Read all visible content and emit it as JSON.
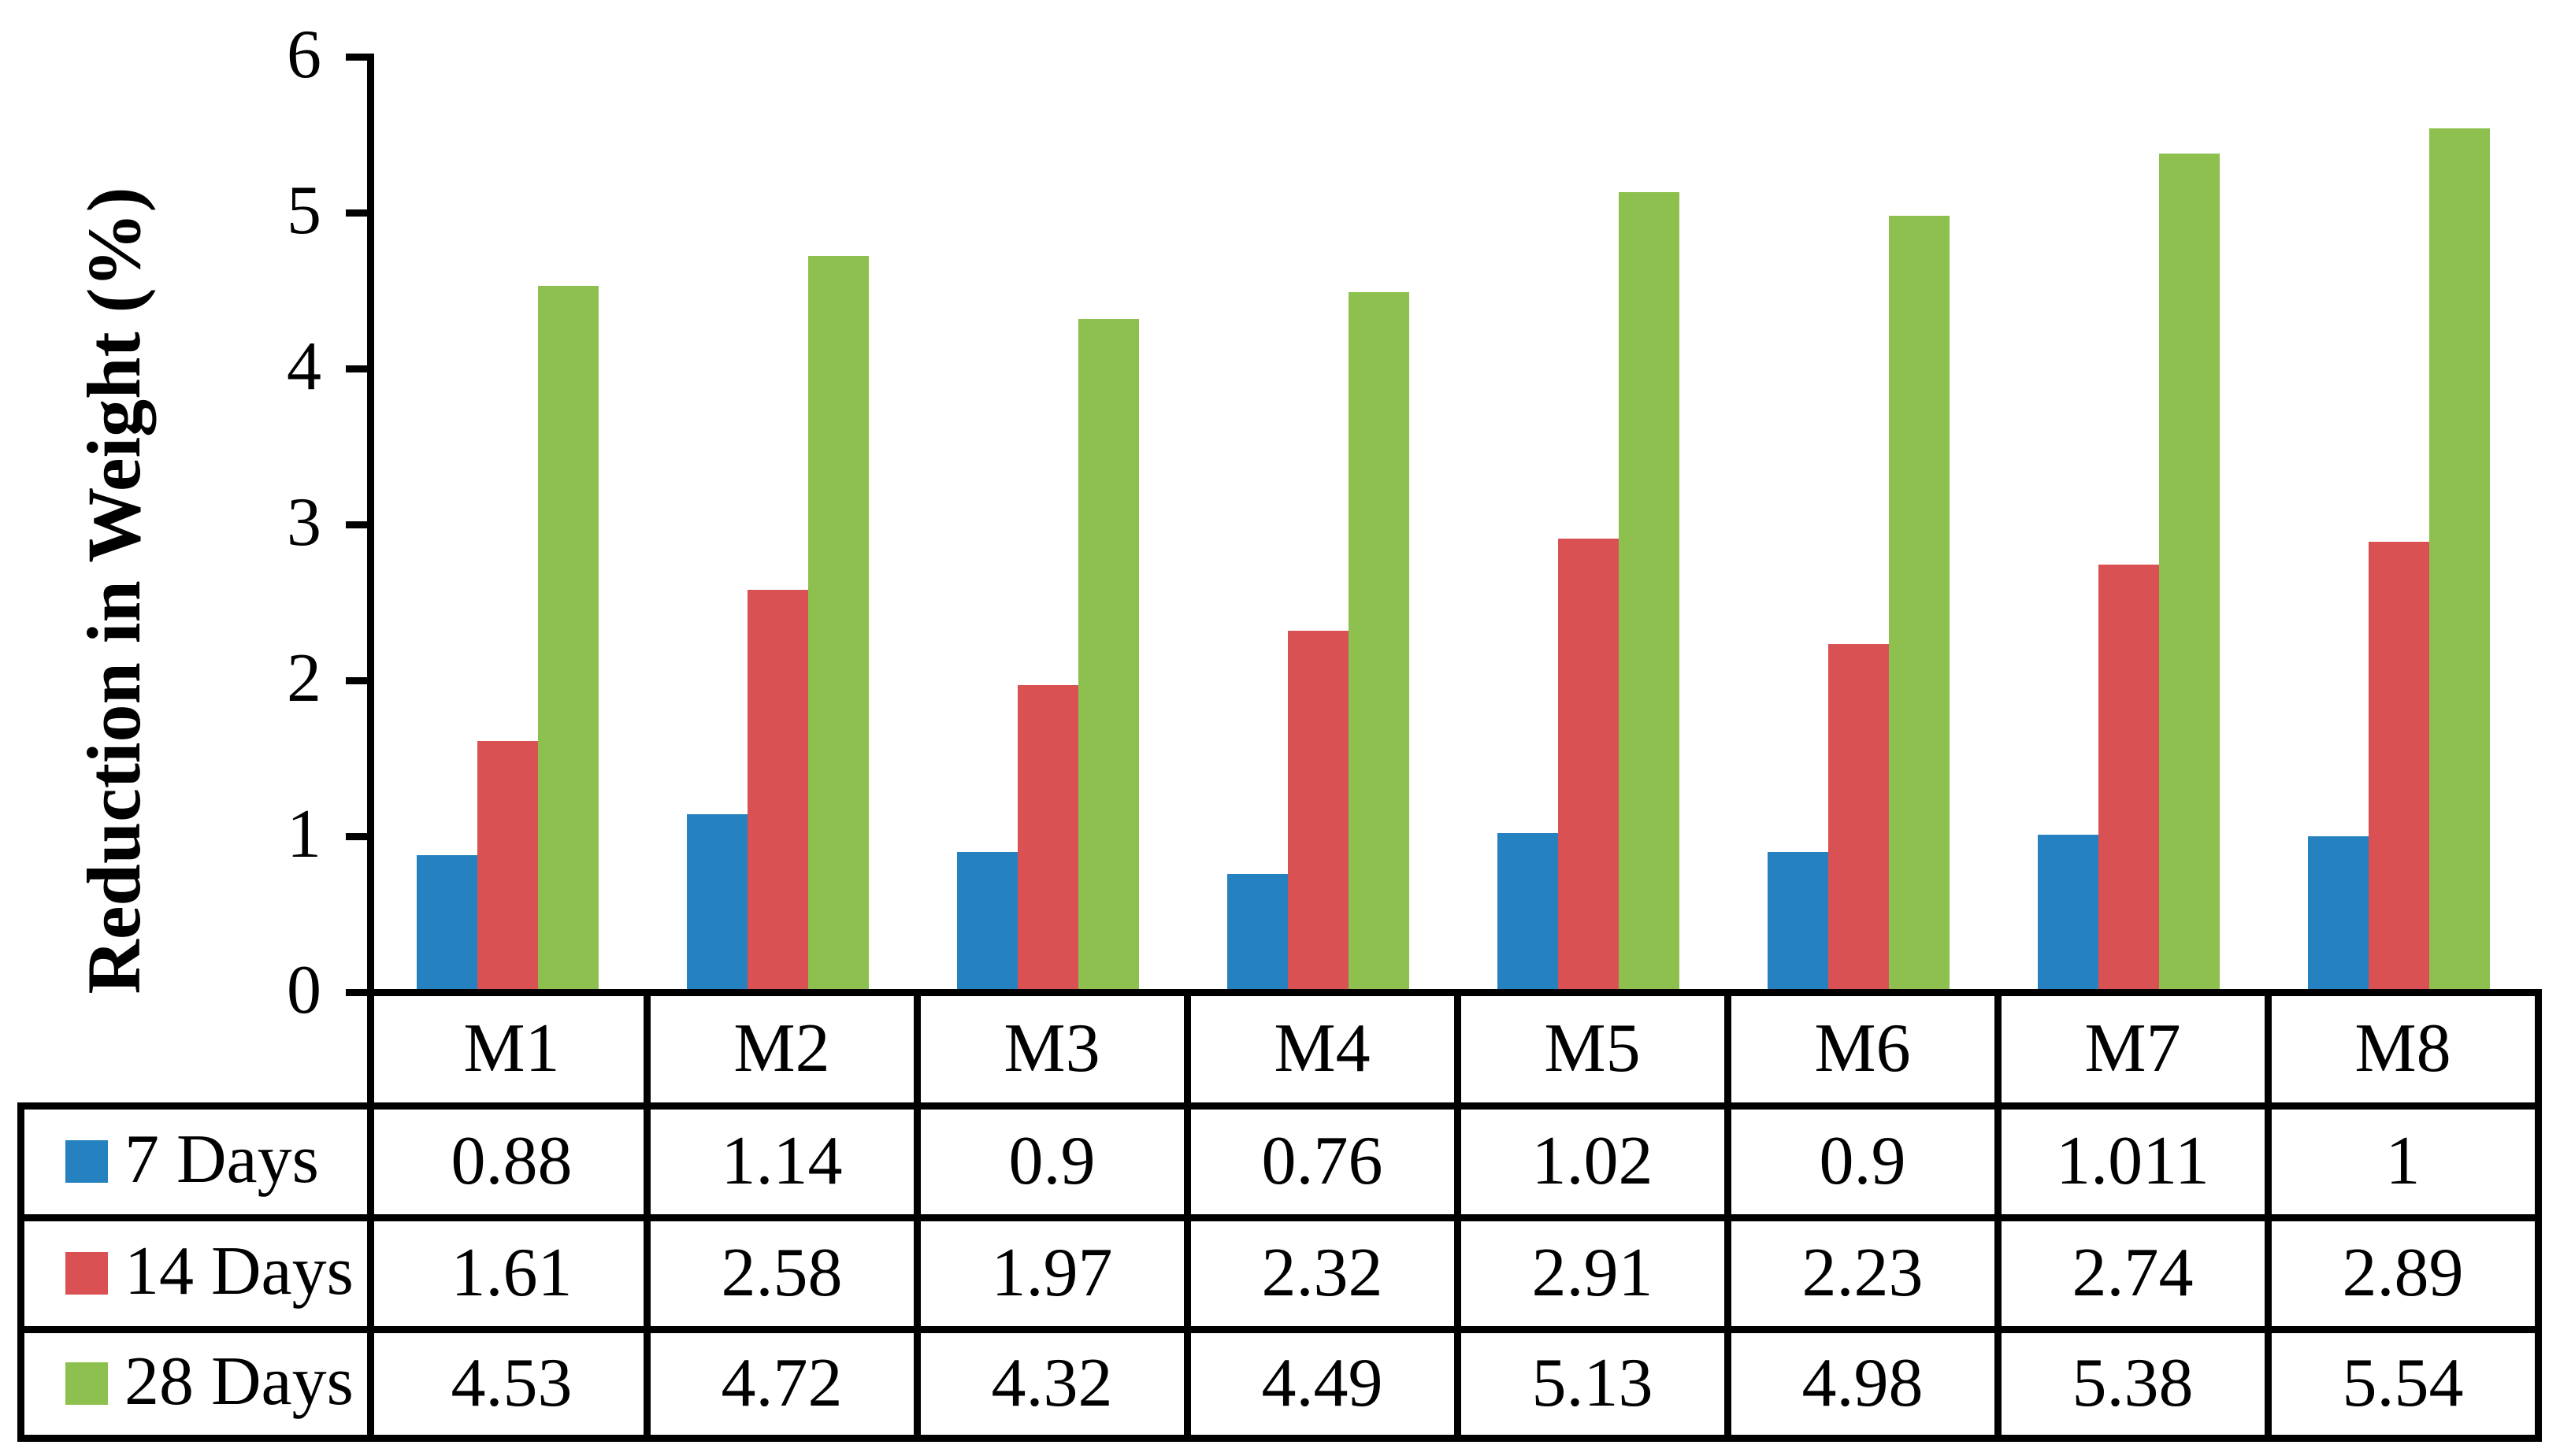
{
  "chart_data": {
    "type": "bar",
    "title": "",
    "xlabel": "",
    "ylabel": "Reduction in Weight (%)",
    "ylim": [
      0,
      6
    ],
    "ytick_step": 1,
    "ytick_labels": [
      "0",
      "1",
      "2",
      "3",
      "4",
      "5",
      "6"
    ],
    "grid": false,
    "legend_position": "data-table-left",
    "data_table_shown": true,
    "categories": [
      "M1",
      "M2",
      "M3",
      "M4",
      "M5",
      "M6",
      "M7",
      "M8"
    ],
    "series": [
      {
        "name": "7 Days",
        "color": "#2581BF",
        "values": [
          0.88,
          1.14,
          0.9,
          0.76,
          1.02,
          0.9,
          1.011,
          1
        ],
        "display": [
          "0.88",
          "1.14",
          "0.9",
          "0.76",
          "1.02",
          "0.9",
          "1.011",
          "1"
        ]
      },
      {
        "name": "14 Days",
        "color": "#D95152",
        "values": [
          1.61,
          2.58,
          1.97,
          2.32,
          2.91,
          2.23,
          2.74,
          2.89
        ],
        "display": [
          "1.61",
          "2.58",
          "1.97",
          "2.32",
          "2.91",
          "2.23",
          "2.74",
          "2.89"
        ]
      },
      {
        "name": "28 Days",
        "color": "#8DC04F",
        "values": [
          4.53,
          4.72,
          4.32,
          4.49,
          5.13,
          4.98,
          5.38,
          5.54
        ],
        "display": [
          "4.53",
          "4.72",
          "4.32",
          "4.49",
          "5.13",
          "4.98",
          "5.38",
          "5.54"
        ]
      }
    ],
    "colors": {
      "axis": "#000000",
      "text": "#000000",
      "background": "#ffffff"
    }
  }
}
